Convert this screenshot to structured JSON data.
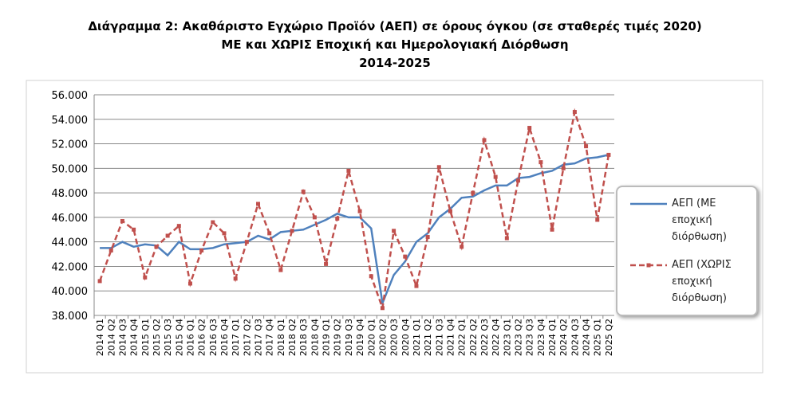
{
  "chart_data": {
    "type": "line",
    "title": [
      "Διάγραμμα 2: Ακαθάριστο Εγχώριο Προϊόν (ΑΕΠ) σε όρους όγκου (σε σταθερές τιμές 2020)",
      "ΜΕ και ΧΩΡΙΣ Εποχική και Ημερολογιακή Διόρθωση",
      "2014-2025"
    ],
    "categories": [
      "2014 Q1",
      "2014 Q2",
      "2014 Q3",
      "2014 Q4",
      "2015 Q1",
      "2015 Q2",
      "2015 Q3",
      "2015 Q4",
      "2016 Q1",
      "2016 Q2",
      "2016 Q3",
      "2016 Q4",
      "2017 Q1",
      "2017 Q2",
      "2017 Q3",
      "2017 Q4",
      "2018 Q1",
      "2018 Q2",
      "2018 Q3",
      "2018 Q4",
      "2019 Q1",
      "2019 Q2",
      "2019 Q3",
      "2019 Q4",
      "2020 Q1",
      "2020 Q2",
      "2020 Q3",
      "2020 Q4",
      "2021 Q1",
      "2021 Q2",
      "2021 Q3",
      "2021 Q4",
      "2022 Q1",
      "2022 Q2",
      "2022 Q3",
      "2022 Q4",
      "2023 Q1",
      "2023 Q2",
      "2023 Q3",
      "2023 Q4",
      "2024 Q1",
      "2024 Q2",
      "2024 Q3",
      "2024 Q4",
      "2025 Q1",
      "2025 Q2"
    ],
    "series": [
      {
        "name": "ΑΕΠ (ΜΕ εποχική διόρθωση)",
        "color": "#4f81bd",
        "dashed": false,
        "markers": false,
        "values": [
          43500,
          43500,
          44000,
          43600,
          43800,
          43700,
          42900,
          44000,
          43400,
          43400,
          43500,
          43800,
          43900,
          44000,
          44500,
          44200,
          44800,
          44900,
          45000,
          45400,
          45800,
          46300,
          46000,
          46000,
          45100,
          39000,
          41300,
          42400,
          44000,
          44700,
          46000,
          46700,
          47600,
          47700,
          48200,
          48600,
          48600,
          49200,
          49300,
          49600,
          49800,
          50300,
          50400,
          50800,
          50900,
          51100
        ]
      },
      {
        "name": "ΑΕΠ (ΧΩΡΙΣ εποχική διόρθωση)",
        "color": "#c0504d",
        "dashed": true,
        "markers": true,
        "values": [
          40800,
          43300,
          45700,
          45000,
          41100,
          43600,
          44500,
          45300,
          40600,
          43300,
          45600,
          44700,
          41000,
          44000,
          47100,
          44700,
          41700,
          44900,
          48100,
          46000,
          42200,
          45900,
          49800,
          46500,
          41200,
          38600,
          44900,
          42800,
          40400,
          44400,
          50100,
          46500,
          43600,
          48000,
          52300,
          49300,
          44300,
          49000,
          53300,
          50500,
          45000,
          50000,
          54600,
          51800,
          45800,
          51100
        ]
      }
    ],
    "ylim": [
      38000,
      56000
    ],
    "yticks": [
      {
        "value": 38000,
        "label": "38.000"
      },
      {
        "value": 40000,
        "label": "40.000"
      },
      {
        "value": 42000,
        "label": "42.000"
      },
      {
        "value": 44000,
        "label": "44.000"
      },
      {
        "value": 46000,
        "label": "46.000"
      },
      {
        "value": 48000,
        "label": "48.000"
      },
      {
        "value": 50000,
        "label": "50.000"
      },
      {
        "value": 52000,
        "label": "52.000"
      },
      {
        "value": 54000,
        "label": "54.000"
      },
      {
        "value": 56000,
        "label": "56.000"
      }
    ],
    "grid": true
  }
}
